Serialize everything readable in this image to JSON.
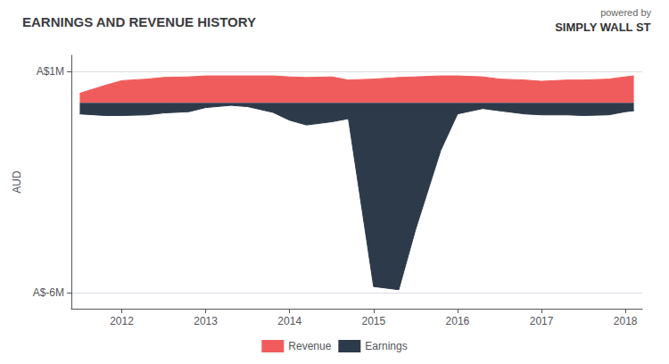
{
  "chart_data": {
    "type": "area",
    "title": "EARNINGS AND REVENUE HISTORY",
    "ylabel": "AUD",
    "x": [
      2011.5,
      2011.8,
      2012.0,
      2012.3,
      2012.5,
      2012.8,
      2013.0,
      2013.3,
      2013.5,
      2013.8,
      2014.0,
      2014.2,
      2014.5,
      2014.7,
      2015.0,
      2015.3,
      2015.5,
      2015.8,
      2016.0,
      2016.3,
      2016.5,
      2016.8,
      2017.0,
      2017.3,
      2017.5,
      2017.8,
      2018.0,
      2018.1
    ],
    "series": [
      {
        "name": "Revenue",
        "color": "#f05c5c",
        "values": [
          0.3,
          0.55,
          0.7,
          0.75,
          0.8,
          0.82,
          0.85,
          0.85,
          0.85,
          0.85,
          0.82,
          0.8,
          0.82,
          0.72,
          0.75,
          0.8,
          0.82,
          0.85,
          0.85,
          0.82,
          0.75,
          0.72,
          0.68,
          0.72,
          0.72,
          0.75,
          0.82,
          0.85
        ]
      },
      {
        "name": "Earnings",
        "color": "#2d3a4a",
        "values": [
          -0.35,
          -0.4,
          -0.4,
          -0.38,
          -0.32,
          -0.28,
          -0.15,
          -0.08,
          -0.12,
          -0.3,
          -0.55,
          -0.7,
          -0.6,
          -0.5,
          -5.8,
          -5.9,
          -4.0,
          -1.5,
          -0.35,
          -0.18,
          -0.25,
          -0.35,
          -0.38,
          -0.38,
          -0.4,
          -0.38,
          -0.28,
          -0.25
        ]
      }
    ],
    "xlim": [
      2011.4,
      2018.2
    ],
    "xticks": [
      2012,
      2013,
      2014,
      2015,
      2016,
      2017,
      2018
    ],
    "ylim": [
      -6.5,
      1.5
    ],
    "yticks": [
      {
        "value": -6,
        "label": "A$-6M"
      },
      {
        "value": 1,
        "label": "A$1M"
      }
    ],
    "grid": true,
    "legend": "bottom",
    "annotations": [
      "powered by",
      "SIMPLY",
      "WALL",
      "ST"
    ]
  }
}
